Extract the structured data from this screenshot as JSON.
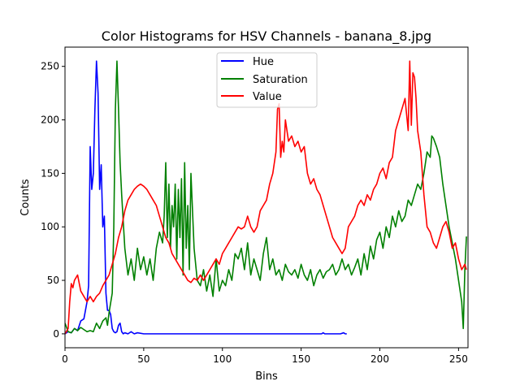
{
  "chart_data": {
    "type": "line",
    "title": "Color Histograms for HSV Channels - banana_8.jpg",
    "xlabel": "Bins",
    "ylabel": "Counts",
    "xlim": [
      0,
      256
    ],
    "ylim": [
      -13,
      268
    ],
    "xticks": [
      0,
      50,
      100,
      150,
      200,
      250
    ],
    "yticks": [
      0,
      50,
      100,
      150,
      200,
      250
    ],
    "grid": false,
    "legend_position": "top-center",
    "series": [
      {
        "name": "Hue",
        "color": "#0000ff",
        "x": [
          0,
          2,
          4,
          6,
          8,
          10,
          12,
          14,
          15,
          16,
          17,
          18,
          19,
          20,
          21,
          22,
          23,
          24,
          25,
          26,
          27,
          28,
          29,
          30,
          31,
          32,
          33,
          34,
          35,
          36,
          37,
          38,
          40,
          42,
          44,
          46,
          50,
          60,
          80,
          100,
          120,
          140,
          160,
          163,
          164,
          165,
          170,
          175,
          177,
          178,
          179
        ],
        "y": [
          0,
          2,
          1,
          5,
          3,
          12,
          14,
          30,
          45,
          175,
          135,
          150,
          210,
          255,
          225,
          135,
          158,
          100,
          110,
          38,
          22,
          22,
          18,
          5,
          2,
          1,
          2,
          8,
          10,
          2,
          0,
          1,
          0,
          2,
          0,
          1,
          0,
          0,
          0,
          0,
          0,
          0,
          0,
          0,
          1,
          0,
          0,
          0,
          1,
          0,
          0
        ]
      },
      {
        "name": "Saturation",
        "color": "#008000",
        "x": [
          0,
          2,
          4,
          6,
          8,
          10,
          12,
          14,
          16,
          18,
          20,
          22,
          24,
          26,
          27,
          28,
          30,
          31,
          32,
          33,
          34,
          35,
          36,
          38,
          40,
          42,
          44,
          46,
          48,
          50,
          52,
          54,
          56,
          58,
          60,
          62,
          63,
          64,
          65,
          66,
          67,
          68,
          69,
          70,
          71,
          72,
          73,
          74,
          75,
          76,
          77,
          78,
          79,
          80,
          82,
          84,
          86,
          88,
          90,
          92,
          94,
          96,
          98,
          100,
          102,
          104,
          106,
          108,
          110,
          112,
          114,
          116,
          118,
          120,
          122,
          124,
          126,
          128,
          130,
          132,
          134,
          136,
          138,
          140,
          142,
          144,
          146,
          148,
          150,
          152,
          154,
          156,
          158,
          160,
          162,
          164,
          166,
          168,
          170,
          172,
          174,
          176,
          178,
          180,
          182,
          184,
          186,
          188,
          190,
          192,
          194,
          196,
          198,
          200,
          202,
          204,
          206,
          208,
          210,
          212,
          214,
          216,
          218,
          220,
          222,
          224,
          226,
          228,
          230,
          232,
          233,
          234,
          236,
          238,
          240,
          242,
          244,
          246,
          248,
          250,
          252,
          253,
          254,
          255
        ],
        "y": [
          10,
          2,
          1,
          5,
          3,
          6,
          4,
          2,
          3,
          2,
          10,
          5,
          12,
          15,
          8,
          20,
          38,
          100,
          210,
          255,
          210,
          160,
          130,
          80,
          55,
          70,
          50,
          80,
          60,
          72,
          55,
          70,
          50,
          80,
          95,
          85,
          110,
          160,
          90,
          140,
          80,
          120,
          100,
          140,
          70,
          135,
          90,
          145,
          55,
          160,
          80,
          120,
          60,
          150,
          80,
          50,
          45,
          60,
          40,
          55,
          35,
          70,
          40,
          50,
          45,
          60,
          50,
          75,
          70,
          80,
          60,
          85,
          55,
          70,
          60,
          50,
          75,
          90,
          60,
          70,
          55,
          60,
          50,
          65,
          58,
          55,
          60,
          52,
          65,
          55,
          50,
          60,
          45,
          55,
          60,
          52,
          58,
          60,
          65,
          55,
          60,
          70,
          60,
          65,
          55,
          62,
          70,
          55,
          75,
          60,
          82,
          70,
          88,
          95,
          80,
          100,
          90,
          110,
          100,
          115,
          105,
          110,
          125,
          120,
          130,
          140,
          135,
          150,
          170,
          165,
          185,
          183,
          175,
          165,
          140,
          120,
          100,
          85,
          70,
          50,
          30,
          5,
          60,
          91
        ]
      },
      {
        "name": "Value",
        "color": "#ff0000",
        "x": [
          0,
          2,
          3,
          4,
          5,
          6,
          8,
          10,
          12,
          14,
          16,
          18,
          20,
          22,
          24,
          26,
          28,
          30,
          32,
          34,
          36,
          38,
          40,
          42,
          44,
          46,
          48,
          50,
          52,
          54,
          56,
          58,
          60,
          62,
          64,
          66,
          68,
          70,
          72,
          74,
          76,
          78,
          80,
          82,
          84,
          86,
          88,
          90,
          92,
          94,
          96,
          98,
          100,
          102,
          104,
          106,
          108,
          110,
          112,
          114,
          116,
          118,
          120,
          122,
          124,
          126,
          128,
          130,
          132,
          134,
          135,
          136,
          137,
          138,
          139,
          140,
          142,
          144,
          146,
          148,
          150,
          152,
          154,
          156,
          158,
          160,
          162,
          164,
          166,
          168,
          170,
          172,
          174,
          176,
          178,
          180,
          182,
          184,
          186,
          188,
          190,
          192,
          194,
          196,
          198,
          200,
          202,
          204,
          206,
          208,
          210,
          212,
          214,
          216,
          218,
          219,
          220,
          221,
          222,
          223,
          224,
          226,
          228,
          230,
          232,
          234,
          236,
          238,
          240,
          242,
          244,
          246,
          248,
          250,
          252,
          254,
          255
        ],
        "y": [
          0,
          5,
          30,
          47,
          43,
          50,
          55,
          40,
          35,
          30,
          35,
          30,
          35,
          38,
          45,
          50,
          55,
          65,
          75,
          90,
          100,
          115,
          125,
          130,
          135,
          138,
          140,
          138,
          135,
          130,
          125,
          120,
          110,
          100,
          90,
          85,
          75,
          70,
          65,
          60,
          55,
          50,
          48,
          52,
          50,
          55,
          50,
          55,
          60,
          65,
          70,
          65,
          75,
          80,
          85,
          90,
          95,
          100,
          98,
          100,
          110,
          100,
          95,
          100,
          115,
          120,
          125,
          140,
          150,
          170,
          210,
          215,
          165,
          180,
          170,
          200,
          180,
          185,
          175,
          180,
          170,
          175,
          150,
          140,
          145,
          135,
          130,
          120,
          110,
          100,
          90,
          85,
          80,
          75,
          80,
          100,
          105,
          110,
          120,
          125,
          120,
          130,
          125,
          135,
          140,
          150,
          155,
          145,
          160,
          165,
          190,
          200,
          210,
          220,
          190,
          255,
          195,
          244,
          240,
          220,
          190,
          170,
          130,
          100,
          95,
          85,
          80,
          90,
          100,
          105,
          95,
          80,
          85,
          70,
          60,
          65,
          60
        ]
      }
    ]
  }
}
